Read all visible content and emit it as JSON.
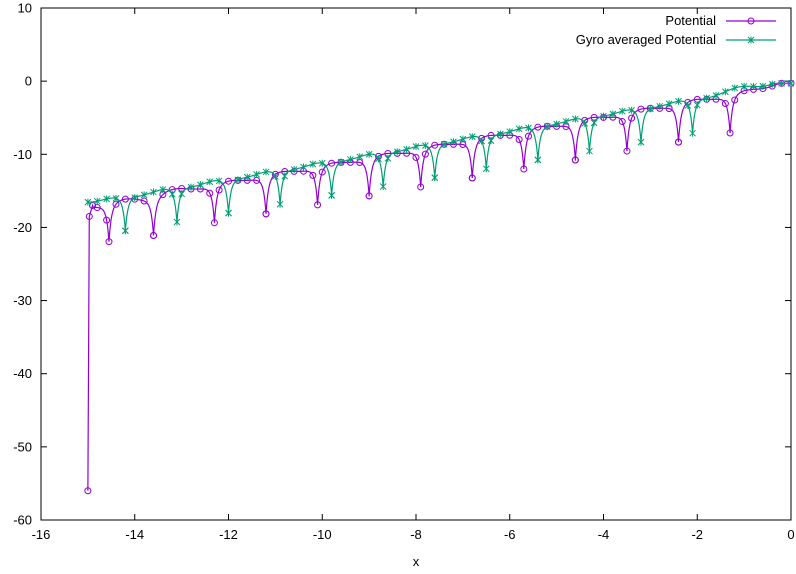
{
  "chart_data": {
    "type": "line",
    "title": "",
    "xlabel": "x",
    "ylabel": "",
    "xlim": [
      -16,
      0
    ],
    "ylim": [
      -60,
      10
    ],
    "xticks": [
      "-16",
      "-14",
      "-12",
      "-10",
      "-8",
      "-6",
      "-4",
      "-2",
      "0"
    ],
    "yticks": [
      "-60",
      "-50",
      "-40",
      "-30",
      "-20",
      "-10",
      "0",
      "10"
    ],
    "grid": false,
    "legend_position": "top-right",
    "series": [
      {
        "name": "Potential",
        "color": "#9400d3",
        "marker": "circle",
        "start": [
          [
            -15.0,
            -56.0
          ],
          [
            -14.97,
            -18.5
          ],
          [
            -14.9,
            -17.0
          ]
        ],
        "line": -0.3,
        "base": -16.8,
        "slope": 1.118,
        "cusps": [
          -14.55,
          -13.6,
          -12.3,
          -11.2,
          -10.1,
          -9.0,
          -7.9,
          -6.8,
          -5.7,
          -4.6,
          -3.5,
          -2.4,
          -1.3
        ],
        "cusp_depth": 4.5,
        "bumps": 0.25,
        "x_end": 0.0,
        "step": 0.2
      },
      {
        "name": "Gyro averaged Potential",
        "color": "#009e73",
        "marker": "star",
        "start": [],
        "line": -0.3,
        "base": -16.3,
        "slope": 1.1,
        "cusps": [
          -14.2,
          -13.1,
          -12.0,
          -10.9,
          -9.8,
          -8.7,
          -7.6,
          -6.5,
          -5.4,
          -4.3,
          -3.2,
          -2.1
        ],
        "cusp_depth": 4.0,
        "bumps": 0.25,
        "x_end": 0.0,
        "step": 0.2
      }
    ]
  }
}
